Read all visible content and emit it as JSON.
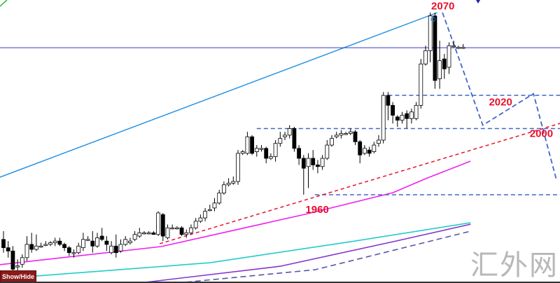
{
  "colors": {
    "bull_body": "#ffffff",
    "bear_body": "#000000",
    "trendline": "#1e8fe0",
    "hline": "#3a3ad0",
    "level_dashed": "#4466cc",
    "support_dashed": "#e8112d",
    "ma_magenta": "#ee22ee",
    "ma_cyan": "#22cccc",
    "ma_purple": "#8833cc",
    "ma_dashed": "#5555aa",
    "label": "#e8112d"
  },
  "controls": {
    "show_hide_label": "Show/Hide"
  },
  "watermark": "汇外网",
  "chart_data": {
    "type": "candlestick",
    "title": "",
    "candles_ohlc_note_fields": [
      "open",
      "close",
      "high",
      "low"
    ],
    "candles": [
      [
        1933,
        1928,
        1938,
        1925
      ],
      [
        1928,
        1926,
        1932,
        1922
      ],
      [
        1926,
        1915,
        1929,
        1912
      ],
      [
        1917,
        1917,
        1921,
        1913
      ],
      [
        1918,
        1922,
        1924,
        1916
      ],
      [
        1922,
        1930,
        1935,
        1920
      ],
      [
        1930,
        1927,
        1937,
        1925
      ],
      [
        1927,
        1929,
        1936,
        1926
      ],
      [
        1929,
        1929,
        1931,
        1928
      ],
      [
        1930,
        1930,
        1932,
        1929
      ],
      [
        1930,
        1931,
        1932,
        1929
      ],
      [
        1931,
        1932,
        1934,
        1929
      ],
      [
        1932,
        1930,
        1934,
        1929
      ],
      [
        1930,
        1928,
        1931,
        1926
      ],
      [
        1928,
        1925,
        1929,
        1923
      ],
      [
        1925,
        1925,
        1927,
        1922
      ],
      [
        1925,
        1929,
        1931,
        1924
      ],
      [
        1928,
        1933,
        1937,
        1926
      ],
      [
        1933,
        1933,
        1935,
        1932
      ],
      [
        1932,
        1929,
        1938,
        1925
      ],
      [
        1929,
        1934,
        1937,
        1928
      ],
      [
        1935,
        1933,
        1940,
        1932
      ],
      [
        1932,
        1930,
        1935,
        1926
      ],
      [
        1925,
        1929,
        1932,
        1924
      ],
      [
        1929,
        1925,
        1936,
        1922
      ],
      [
        1926,
        1930,
        1933,
        1925
      ],
      [
        1930,
        1933,
        1935,
        1929
      ],
      [
        1931,
        1932,
        1934,
        1930
      ],
      [
        1933,
        1936,
        1938,
        1932
      ],
      [
        1935,
        1937,
        1940,
        1934
      ],
      [
        1937,
        1937,
        1938,
        1936
      ],
      [
        1937,
        1937,
        1938,
        1936
      ],
      [
        1937,
        1936,
        1938,
        1936
      ],
      [
        1936,
        1949,
        1950,
        1935
      ],
      [
        1948,
        1935,
        1949,
        1932
      ],
      [
        1934,
        1940,
        1942,
        1933
      ],
      [
        1940,
        1940,
        1942,
        1939
      ],
      [
        1940,
        1940,
        1941,
        1939
      ],
      [
        1940,
        1936,
        1941,
        1935
      ],
      [
        1936,
        1937,
        1939,
        1934
      ],
      [
        1937,
        1940,
        1942,
        1936
      ],
      [
        1940,
        1944,
        1946,
        1939
      ],
      [
        1944,
        1946,
        1948,
        1943
      ],
      [
        1946,
        1950,
        1952,
        1944
      ],
      [
        1951,
        1951,
        1954,
        1950
      ],
      [
        1952,
        1955,
        1958,
        1950
      ],
      [
        1955,
        1961,
        1963,
        1954
      ],
      [
        1961,
        1966,
        1968,
        1960
      ],
      [
        1966,
        1967,
        1970,
        1965
      ],
      [
        1967,
        1968,
        1971,
        1966
      ],
      [
        1968,
        1985,
        1987,
        1966
      ],
      [
        1985,
        1986,
        1987,
        1984
      ],
      [
        1985,
        1995,
        1998,
        1984
      ],
      [
        1995,
        1985,
        1996,
        1984
      ],
      [
        1986,
        1988,
        1990,
        1983
      ],
      [
        1988,
        1988,
        1990,
        1986
      ],
      [
        1988,
        1982,
        1989,
        1979
      ],
      [
        1982,
        1983,
        1985,
        1981
      ],
      [
        1983,
        1991,
        1993,
        1980
      ],
      [
        1991,
        1994,
        1998,
        1989
      ],
      [
        1995,
        1996,
        1998,
        1993
      ],
      [
        1996,
        2000,
        2002,
        1994
      ],
      [
        2000,
        1988,
        2001,
        1986
      ],
      [
        1988,
        1982,
        1990,
        1978
      ],
      [
        1982,
        1976,
        1984,
        1960
      ],
      [
        1977,
        1982,
        1985,
        1964
      ],
      [
        1982,
        1978,
        1987,
        1975
      ],
      [
        1978,
        1977,
        1981,
        1973
      ],
      [
        1977,
        1982,
        1984,
        1975
      ],
      [
        1982,
        1990,
        1993,
        1981
      ],
      [
        1990,
        1994,
        1996,
        1989
      ],
      [
        1995,
        1996,
        1998,
        1994
      ],
      [
        1996,
        1997,
        1999,
        1994
      ],
      [
        1997,
        1997,
        1998,
        1996
      ],
      [
        1997,
        1998,
        2000,
        1996
      ],
      [
        1998,
        1992,
        1999,
        1990
      ],
      [
        1992,
        1984,
        1993,
        1979
      ],
      [
        1985,
        1988,
        1990,
        1984
      ],
      [
        1987,
        1985,
        1989,
        1983
      ],
      [
        1986,
        1990,
        1992,
        1985
      ],
      [
        1991,
        1993,
        1996,
        1989
      ],
      [
        1993,
        2020,
        2022,
        1991
      ],
      [
        2020,
        2014,
        2022,
        2005
      ],
      [
        2014,
        2008,
        2016,
        2003
      ],
      [
        2007,
        2005,
        2008,
        2001
      ],
      [
        2005,
        2008,
        2010,
        2003
      ],
      [
        2009,
        2006,
        2011,
        2000
      ],
      [
        2006,
        2010,
        2012,
        2003
      ],
      [
        2006,
        2014,
        2016,
        2005
      ],
      [
        2014,
        2039,
        2042,
        2012
      ],
      [
        2039,
        2047,
        2050,
        2038
      ],
      [
        2047,
        2068,
        2070,
        2040
      ],
      [
        2068,
        2029,
        2070,
        2024
      ],
      [
        2030,
        2041,
        2053,
        2024
      ],
      [
        2042,
        2036,
        2045,
        2030
      ],
      [
        2037,
        2050,
        2052,
        2033
      ],
      [
        2050,
        2050,
        2053,
        2049
      ],
      [
        2049,
        2049,
        2050,
        2048
      ],
      [
        2049,
        2049,
        2051,
        2048
      ]
    ],
    "moving_averages": [
      {
        "color": "#ee22ee",
        "style": "solid",
        "points": [
          [
            -1,
            1917.7
          ],
          [
            33.6,
            1928.7
          ],
          [
            65,
            1948.6
          ],
          [
            83,
            1961.2
          ],
          [
            90,
            1969.7
          ],
          [
            99.6,
            1980.3
          ]
        ]
      },
      {
        "color": "#22cccc",
        "style": "solid",
        "points": [
          [
            -1,
            1909.2
          ],
          [
            44,
            1918.9
          ],
          [
            74,
            1931.6
          ],
          [
            99.6,
            1943.1
          ]
        ]
      },
      {
        "color": "#8833cc",
        "style": "solid",
        "points": [
          [
            29,
            1906.7
          ],
          [
            59,
            1916.8
          ],
          [
            83,
            1931.6
          ],
          [
            99.6,
            1942.2
          ]
        ]
      },
      {
        "color": "#5555aa",
        "style": "dashed",
        "points": [
          [
            37,
            1906.7
          ],
          [
            66.4,
            1914.7
          ],
          [
            99.6,
            1938
          ]
        ]
      }
    ],
    "drawings": {
      "trendline": [
        [
          -0.75,
          1970.6
        ],
        [
          92.5,
          2070
        ]
      ],
      "horizontal_line": 2048.8,
      "support_trend": [
        [
          33.3,
          1930.4
        ],
        [
          118.7,
          2003.1
        ]
      ],
      "projection_path": [
        [
          93.6,
          2070
        ],
        [
          102.2,
          2002
        ],
        [
          113,
          2021
        ],
        [
          117.9,
          1969
        ]
      ],
      "levels": [
        {
          "price": 2020,
          "from": 82
        },
        {
          "price": 2000,
          "from": 54
        },
        {
          "price": 1960,
          "from": 66.4
        }
      ]
    },
    "annotations": [
      {
        "text": "2070",
        "at": [
          91.2,
          2072
        ]
      },
      {
        "text": "2020",
        "at": [
          103.5,
          2014
        ]
      },
      {
        "text": "2000",
        "at": [
          112.2,
          1995
        ]
      },
      {
        "text": "1960",
        "at": [
          64.4,
          1949
        ]
      }
    ]
  }
}
